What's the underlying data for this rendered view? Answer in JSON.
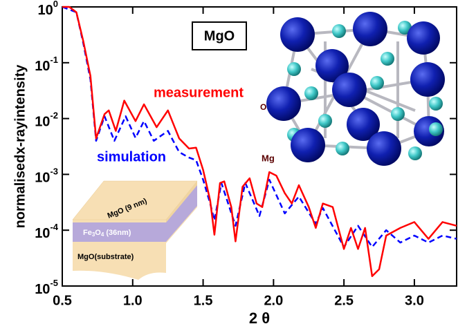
{
  "chart_data": {
    "type": "line",
    "xlabel": "2 θ",
    "ylabel": "normalisedx-rayintensity",
    "ylog": true,
    "xlim": [
      0.5,
      3.3
    ],
    "ylim": [
      1e-05,
      1
    ],
    "xticks": [
      {
        "value": 0.5,
        "label": "0.5"
      },
      {
        "value": 1,
        "label": "1.0"
      },
      {
        "value": 1.5,
        "label": "1.5"
      },
      {
        "value": 2,
        "label": "2.0"
      },
      {
        "value": 2.5,
        "label": "2.5"
      },
      {
        "value": 3,
        "label": "3.0"
      }
    ],
    "yticks": [
      {
        "value": 1,
        "label": "10",
        "sup": "0"
      },
      {
        "value": 0.1,
        "label": "10",
        "sup": "-1"
      },
      {
        "value": 0.01,
        "label": "10",
        "sup": "-2"
      },
      {
        "value": 0.001,
        "label": "10",
        "sup": "-3"
      },
      {
        "value": 0.0001,
        "label": "10",
        "sup": "-4"
      },
      {
        "value": 1e-05,
        "label": "10",
        "sup": "-5"
      }
    ],
    "series": [
      {
        "name": "measurement",
        "color": "#ff0000",
        "dashed": false,
        "x": [
          0.5,
          0.55,
          0.6,
          0.65,
          0.7,
          0.74,
          0.8,
          0.83,
          0.88,
          0.94,
          1.02,
          1.08,
          1.17,
          1.25,
          1.33,
          1.4,
          1.45,
          1.5,
          1.55,
          1.58,
          1.62,
          1.65,
          1.7,
          1.73,
          1.78,
          1.83,
          1.88,
          1.92,
          1.97,
          2.02,
          2.08,
          2.13,
          2.18,
          2.25,
          2.3,
          2.35,
          2.42,
          2.5,
          2.55,
          2.6,
          2.65,
          2.7,
          2.75,
          2.8,
          2.9,
          3.0,
          3.1,
          3.2,
          3.3
        ],
        "values": [
          1,
          1,
          0.8,
          0.24,
          0.058,
          0.0044,
          0.012,
          0.014,
          0.006,
          0.021,
          0.009,
          0.018,
          0.007,
          0.014,
          0.0044,
          0.0029,
          0.003,
          0.0012,
          0.00034,
          8.3e-05,
          0.0007,
          0.00075,
          0.00026,
          6.3e-05,
          0.0006,
          0.00085,
          0.0003,
          0.00026,
          0.0011,
          0.00095,
          0.00046,
          0.0003,
          0.00064,
          0.00026,
          0.00011,
          0.0003,
          0.00026,
          4.6e-05,
          0.00011,
          4.6e-05,
          0.00011,
          1.5e-05,
          2e-05,
          8e-05,
          0.00011,
          0.00014,
          7e-05,
          0.00014,
          0.00012
        ]
      },
      {
        "name": "simulation",
        "color": "#0000ff",
        "dashed": true,
        "x": [
          0.5,
          0.6,
          0.65,
          0.7,
          0.74,
          0.8,
          0.87,
          0.95,
          1.02,
          1.08,
          1.15,
          1.25,
          1.33,
          1.4,
          1.45,
          1.5,
          1.55,
          1.58,
          1.63,
          1.73,
          1.8,
          1.9,
          1.97,
          2.08,
          2.18,
          2.3,
          2.35,
          2.5,
          2.6,
          2.7,
          2.8,
          2.9,
          3.0,
          3.1,
          3.2,
          3.3
        ],
        "values": [
          1,
          0.8,
          0.22,
          0.05,
          0.004,
          0.011,
          0.004,
          0.011,
          0.0045,
          0.009,
          0.004,
          0.006,
          0.0025,
          0.002,
          0.0018,
          0.0008,
          0.0003,
          0.00015,
          0.0007,
          0.00012,
          0.0007,
          0.00018,
          0.0008,
          0.0002,
          0.0004,
          0.00013,
          0.00025,
          5e-05,
          0.00012,
          5e-05,
          0.0001,
          6e-05,
          8e-05,
          6e-05,
          8e-05,
          7e-05
        ]
      }
    ],
    "annotations": {
      "box_label": "MgO",
      "atom_o": "O",
      "atom_mg": "Mg",
      "top_layer": "MgO (9 nm)",
      "mid_layer": [
        "Fe",
        "3",
        "O",
        "4",
        " (36nm)"
      ],
      "substrate": "MgO(substrate)"
    }
  }
}
